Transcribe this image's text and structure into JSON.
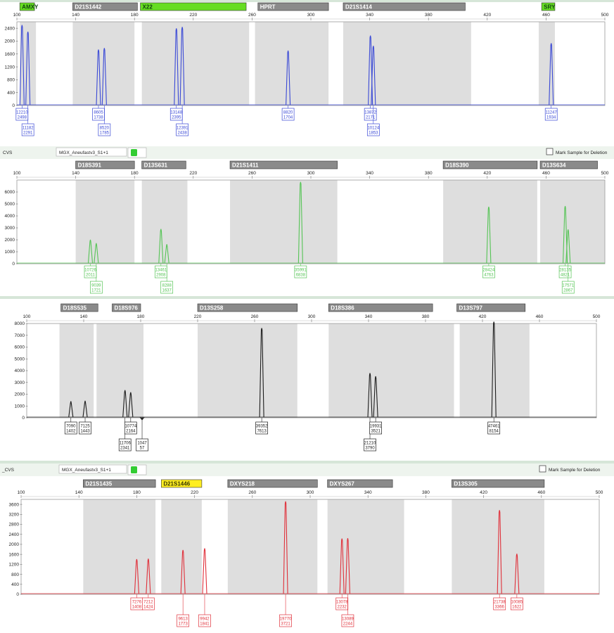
{
  "window": {
    "separator_color": "#d6e6d8",
    "header_bg": "#eef4ee",
    "sample_name": "MGX_Aneufastv3_S1+1",
    "mark_label": "Mark Sample for Deletion"
  },
  "headers": [
    {
      "prefix": "CVS"
    },
    {
      "prefix": "_CVS"
    }
  ],
  "chart_data": [
    {
      "type": "line",
      "title": "Blue channel",
      "color": "#3a49d6",
      "x_range": [
        100,
        500
      ],
      "x_ticks": [
        100,
        140,
        180,
        220,
        260,
        300,
        340,
        380,
        420,
        460,
        500
      ],
      "y_range": [
        0,
        2600
      ],
      "y_ticks": [
        0,
        400,
        800,
        1200,
        1600,
        2000,
        2400
      ],
      "markers": [
        {
          "name": "AMXY",
          "start": 102,
          "end": 112,
          "style": "green"
        },
        {
          "name": "D21S1442",
          "start": 138,
          "end": 182,
          "style": "gray"
        },
        {
          "name": "X22",
          "start": 184,
          "end": 256,
          "style": "green"
        },
        {
          "name": "HPRT",
          "start": 264,
          "end": 312,
          "style": "gray"
        },
        {
          "name": "D21S1414",
          "start": 322,
          "end": 405,
          "style": "gray"
        },
        {
          "name": "SRY",
          "start": 457,
          "end": 466,
          "style": "green"
        }
      ],
      "bins": [
        [
          102,
          113
        ],
        [
          138,
          180
        ],
        [
          185,
          258
        ],
        [
          262,
          312
        ],
        [
          322,
          409
        ],
        [
          455,
          466
        ]
      ],
      "peaks": [
        {
          "x": 103.5,
          "h": 2498
        },
        {
          "x": 107.5,
          "h": 2291
        },
        {
          "x": 155.5,
          "h": 1738
        },
        {
          "x": 159.5,
          "h": 1785
        },
        {
          "x": 182.5,
          "h": 0
        },
        {
          "x": 208.5,
          "h": 2395
        },
        {
          "x": 212.5,
          "h": 2438
        },
        {
          "x": 284.5,
          "h": 1704
        },
        {
          "x": 340.5,
          "h": 2171
        },
        {
          "x": 342.5,
          "h": 1853
        },
        {
          "x": 463.5,
          "h": 1934
        }
      ],
      "labels": [
        {
          "x": 103.5,
          "row": 0,
          "a": "12210",
          "b": "2498"
        },
        {
          "x": 107.5,
          "row": 1,
          "a": "11182",
          "b": "2291"
        },
        {
          "x": 155.5,
          "row": 0,
          "a": "8605",
          "b": "1738"
        },
        {
          "x": 159.5,
          "row": 1,
          "a": "8520",
          "b": "1785"
        },
        {
          "x": 208.5,
          "row": 0,
          "a": "13148",
          "b": "2395"
        },
        {
          "x": 212.5,
          "row": 1,
          "a": "12391",
          "b": "2438"
        },
        {
          "x": 284.5,
          "row": 0,
          "a": "8820",
          "b": "1704"
        },
        {
          "x": 340.5,
          "row": 0,
          "a": "13872",
          "b": "2171"
        },
        {
          "x": 342.5,
          "row": 1,
          "a": "10124",
          "b": "1853"
        },
        {
          "x": 463.5,
          "row": 0,
          "a": "11247",
          "b": "1934"
        }
      ]
    },
    {
      "type": "line",
      "title": "Green channel",
      "color": "#55c455",
      "x_range": [
        100,
        500
      ],
      "x_ticks": [
        100,
        140,
        180,
        220,
        260,
        300,
        340,
        380,
        420,
        460,
        500
      ],
      "y_range": [
        0,
        7000
      ],
      "y_ticks": [
        0,
        1000,
        2000,
        3000,
        4000,
        5000,
        6000
      ],
      "markers": [
        {
          "name": "D18S391",
          "start": 140,
          "end": 180,
          "style": "gray"
        },
        {
          "name": "D13S631",
          "start": 185,
          "end": 215,
          "style": "gray"
        },
        {
          "name": "D21S1411",
          "start": 245,
          "end": 318,
          "style": "gray"
        },
        {
          "name": "D18S390",
          "start": 390,
          "end": 454,
          "style": "gray"
        },
        {
          "name": "D13S634",
          "start": 456,
          "end": 495,
          "style": "gray"
        }
      ],
      "bins": [
        [
          140,
          180
        ],
        [
          185,
          216
        ],
        [
          245,
          318
        ],
        [
          390,
          454
        ],
        [
          456,
          500
        ]
      ],
      "peaks": [
        {
          "x": 150,
          "h": 2011
        },
        {
          "x": 154,
          "h": 1721
        },
        {
          "x": 198,
          "h": 2908
        },
        {
          "x": 202,
          "h": 1637
        },
        {
          "x": 293,
          "h": 6838
        },
        {
          "x": 421,
          "h": 4763
        },
        {
          "x": 473,
          "h": 4821
        },
        {
          "x": 475,
          "h": 2867
        }
      ],
      "labels": [
        {
          "x": 150,
          "row": 0,
          "a": "10726",
          "b": "2011"
        },
        {
          "x": 154,
          "row": 1,
          "a": "9039",
          "b": "1721"
        },
        {
          "x": 198,
          "row": 0,
          "a": "13461",
          "b": "2908"
        },
        {
          "x": 202,
          "row": 1,
          "a": "8288",
          "b": "1637"
        },
        {
          "x": 293,
          "row": 0,
          "a": "35991",
          "b": "6838"
        },
        {
          "x": 421,
          "row": 0,
          "a": "28424",
          "b": "4763"
        },
        {
          "x": 473,
          "row": 0,
          "a": "28135",
          "b": "4821"
        },
        {
          "x": 475,
          "row": 1,
          "a": "17571",
          "b": "2867"
        }
      ]
    },
    {
      "type": "line",
      "title": "Black channel",
      "color": "#1c1c1c",
      "x_range": [
        100,
        500
      ],
      "x_ticks": [
        100,
        140,
        180,
        220,
        260,
        300,
        340,
        380,
        420,
        460,
        500
      ],
      "y_range": [
        0,
        8000
      ],
      "y_ticks": [
        0,
        1000,
        2000,
        3000,
        4000,
        5000,
        6000,
        7000,
        8000
      ],
      "markers": [
        {
          "name": "D18S535",
          "start": 124,
          "end": 150,
          "style": "gray"
        },
        {
          "name": "D18S976",
          "start": 160,
          "end": 180,
          "style": "gray"
        },
        {
          "name": "D13S258",
          "start": 220,
          "end": 290,
          "style": "gray"
        },
        {
          "name": "D18S386",
          "start": 312,
          "end": 385,
          "style": "gray"
        },
        {
          "name": "D13S797",
          "start": 402,
          "end": 450,
          "style": "gray"
        }
      ],
      "bins": [
        [
          123,
          147
        ],
        [
          149,
          182
        ],
        [
          220,
          290
        ],
        [
          312,
          400
        ],
        [
          404,
          453
        ]
      ],
      "peaks": [
        {
          "x": 131,
          "h": 1402
        },
        {
          "x": 141,
          "h": 1443
        },
        {
          "x": 169,
          "h": 2341
        },
        {
          "x": 173,
          "h": 2164
        },
        {
          "x": 181,
          "h": 57
        },
        {
          "x": 265,
          "h": 7613
        },
        {
          "x": 341,
          "h": 3790
        },
        {
          "x": 345,
          "h": 3521
        },
        {
          "x": 428,
          "h": 8154
        }
      ],
      "labels": [
        {
          "x": 131,
          "row": 0,
          "a": "7090",
          "b": "1402"
        },
        {
          "x": 141,
          "row": 0,
          "a": "7125",
          "b": "1443"
        },
        {
          "x": 169,
          "row": 1,
          "a": "11706",
          "b": "2341"
        },
        {
          "x": 173,
          "row": 0,
          "a": "10774",
          "b": "2164"
        },
        {
          "x": 181,
          "row": 1,
          "a": "1047",
          "b": "57"
        },
        {
          "x": 265,
          "row": 0,
          "a": "39352",
          "b": "7613"
        },
        {
          "x": 341,
          "row": 1,
          "a": "21210",
          "b": "3790"
        },
        {
          "x": 345,
          "row": 0,
          "a": "19931",
          "b": "3521"
        },
        {
          "x": 428,
          "row": 0,
          "a": "47461",
          "b": "8154"
        }
      ]
    },
    {
      "type": "line",
      "title": "Red channel",
      "color": "#e0303a",
      "x_range": [
        100,
        500
      ],
      "x_ticks": [
        100,
        140,
        180,
        220,
        260,
        300,
        340,
        380,
        420,
        460,
        500
      ],
      "y_range": [
        0,
        3800
      ],
      "y_ticks": [
        0,
        400,
        800,
        1200,
        1600,
        2000,
        2400,
        2800,
        3200,
        3600
      ],
      "markers": [
        {
          "name": "D21S1435",
          "start": 143,
          "end": 193,
          "style": "gray"
        },
        {
          "name": "D21S1446",
          "start": 197,
          "end": 225,
          "style": "yellow"
        },
        {
          "name": "DXYS218",
          "start": 243,
          "end": 305,
          "style": "gray"
        },
        {
          "name": "DXYS267",
          "start": 312,
          "end": 357,
          "style": "gray"
        },
        {
          "name": "D13S305",
          "start": 398,
          "end": 462,
          "style": "gray"
        }
      ],
      "bins": [
        [
          143,
          193
        ],
        [
          197,
          225
        ],
        [
          243,
          305
        ],
        [
          312,
          365
        ],
        [
          398,
          462
        ]
      ],
      "peaks": [
        {
          "x": 180,
          "h": 1408
        },
        {
          "x": 188,
          "h": 1424
        },
        {
          "x": 212,
          "h": 1773
        },
        {
          "x": 227,
          "h": 1841
        },
        {
          "x": 283,
          "h": 3721
        },
        {
          "x": 322,
          "h": 2232
        },
        {
          "x": 326,
          "h": 2244
        },
        {
          "x": 431,
          "h": 3366
        },
        {
          "x": 443,
          "h": 1622
        }
      ],
      "labels": [
        {
          "x": 180,
          "row": 0,
          "a": "7276",
          "b": "1408"
        },
        {
          "x": 188,
          "row": 0,
          "a": "7212",
          "b": "1424"
        },
        {
          "x": 212,
          "row": 1,
          "a": "9613",
          "b": "1773"
        },
        {
          "x": 227,
          "row": 1,
          "a": "9942",
          "b": "1841"
        },
        {
          "x": 283,
          "row": 1,
          "a": "19770",
          "b": "3721"
        },
        {
          "x": 322,
          "row": 0,
          "a": "13078",
          "b": "2232"
        },
        {
          "x": 326,
          "row": 1,
          "a": "13089",
          "b": "2244"
        },
        {
          "x": 431,
          "row": 0,
          "a": "21738",
          "b": "3366"
        },
        {
          "x": 443,
          "row": 0,
          "a": "10085",
          "b": "1622"
        }
      ]
    }
  ]
}
